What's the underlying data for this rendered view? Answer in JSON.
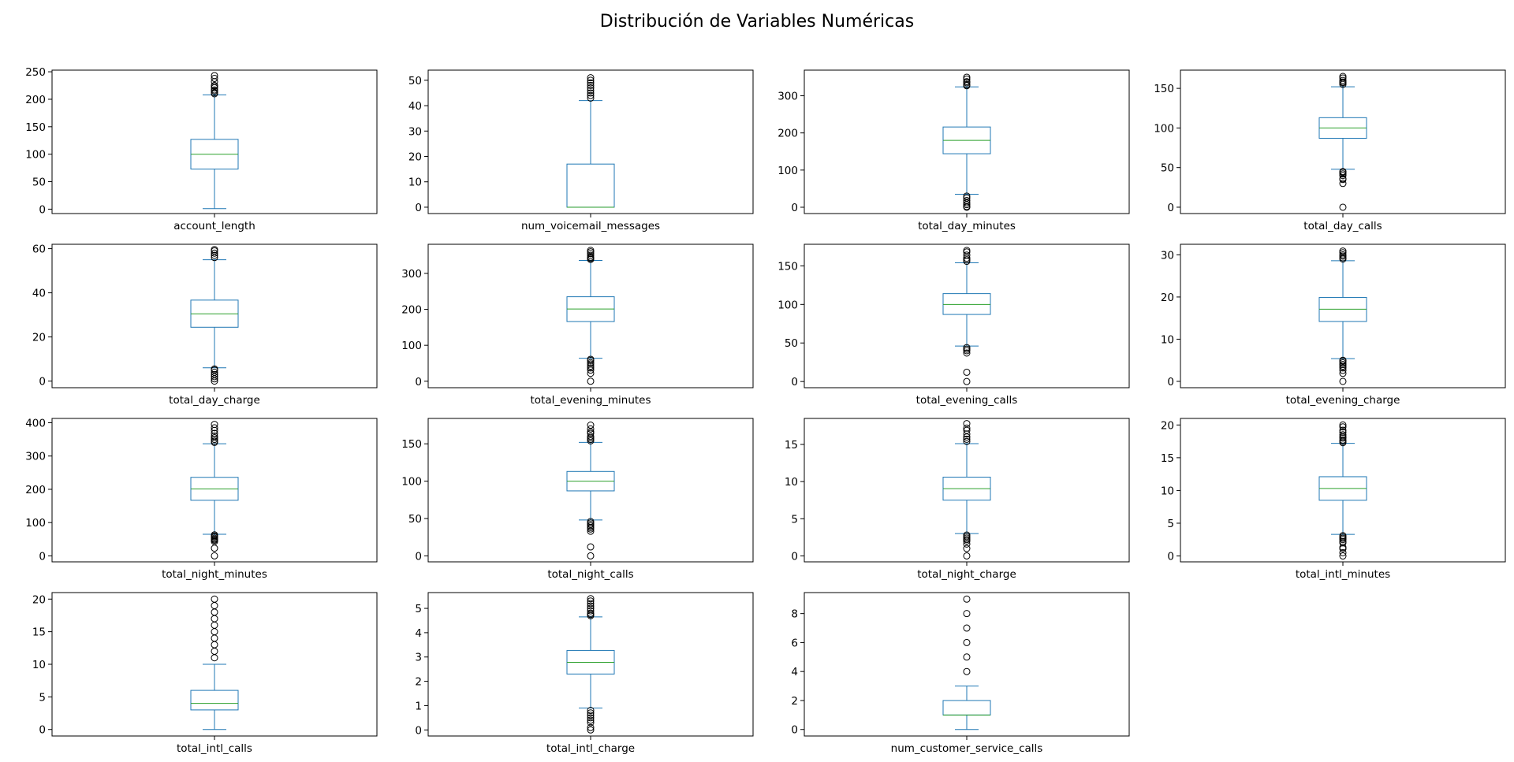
{
  "title": "Distribución de Variables Numéricas",
  "colors": {
    "box": "#1f77b4",
    "median": "#2ca02c",
    "flier": "#000000",
    "axes": "#000000"
  },
  "chart_data": [
    {
      "type": "box",
      "label": "account_length",
      "ylim": [
        -8,
        253
      ],
      "yticks": [
        0,
        50,
        100,
        150,
        200,
        250
      ],
      "whislo": 1,
      "q1": 73,
      "med": 100,
      "q3": 127,
      "whishi": 208,
      "fliers": [
        210,
        212,
        215,
        217,
        221,
        224,
        225,
        232,
        238,
        243
      ]
    },
    {
      "type": "box",
      "label": "num_voicemail_messages",
      "ylim": [
        -2.5,
        54
      ],
      "yticks": [
        0,
        10,
        20,
        30,
        40,
        50
      ],
      "whislo": 0,
      "q1": 0,
      "med": 0,
      "q3": 17,
      "whishi": 42,
      "fliers": [
        43,
        44,
        45,
        46,
        47,
        48,
        49,
        50,
        51
      ]
    },
    {
      "type": "box",
      "label": "total_day_minutes",
      "ylim": [
        -17,
        369
      ],
      "yticks": [
        0,
        100,
        200,
        300
      ],
      "whislo": 35,
      "q1": 144,
      "med": 180,
      "q3": 216,
      "whishi": 324,
      "fliers": [
        0,
        2,
        7,
        12,
        18,
        25,
        30,
        327,
        330,
        335,
        338,
        345,
        350
      ]
    },
    {
      "type": "box",
      "label": "total_day_calls",
      "ylim": [
        -8,
        173
      ],
      "yticks": [
        0,
        50,
        100,
        150
      ],
      "whislo": 48,
      "q1": 87,
      "med": 100,
      "q3": 113,
      "whishi": 152,
      "fliers": [
        0,
        30,
        35,
        36,
        40,
        42,
        44,
        45,
        155,
        157,
        158,
        160,
        163,
        165
      ]
    },
    {
      "type": "box",
      "label": "total_day_charge",
      "ylim": [
        -3,
        62
      ],
      "yticks": [
        0,
        20,
        40,
        60
      ],
      "whislo": 6,
      "q1": 24.4,
      "med": 30.5,
      "q3": 36.7,
      "whishi": 55,
      "fliers": [
        0,
        1,
        2,
        3,
        4,
        5,
        5.5,
        56,
        57,
        58,
        59,
        59.6
      ]
    },
    {
      "type": "box",
      "label": "total_evening_minutes",
      "ylim": [
        -18,
        381
      ],
      "yticks": [
        0,
        100,
        200,
        300
      ],
      "whislo": 64,
      "q1": 166,
      "med": 201,
      "q3": 235,
      "whishi": 336,
      "fliers": [
        0,
        22,
        31,
        37,
        42,
        48,
        52,
        58,
        61,
        339,
        342,
        345,
        350,
        355,
        360,
        364
      ]
    },
    {
      "type": "box",
      "label": "total_evening_calls",
      "ylim": [
        -8,
        178
      ],
      "yticks": [
        0,
        50,
        100,
        150
      ],
      "whislo": 46,
      "q1": 87,
      "med": 100,
      "q3": 114,
      "whishi": 154,
      "fliers": [
        0,
        12,
        37,
        40,
        42,
        44,
        156,
        158,
        160,
        164,
        168,
        170
      ]
    },
    {
      "type": "box",
      "label": "total_evening_charge",
      "ylim": [
        -1.5,
        32.5
      ],
      "yticks": [
        0,
        10,
        20,
        30
      ],
      "whislo": 5.4,
      "q1": 14.2,
      "med": 17.1,
      "q3": 19.9,
      "whishi": 28.6,
      "fliers": [
        0,
        1.9,
        2.6,
        3.2,
        3.6,
        4,
        4.4,
        4.8,
        5,
        29,
        29.3,
        29.7,
        30,
        30.5,
        30.9
      ]
    },
    {
      "type": "box",
      "label": "total_night_minutes",
      "ylim": [
        -18,
        413
      ],
      "yticks": [
        0,
        100,
        200,
        300,
        400
      ],
      "whislo": 65,
      "q1": 167,
      "med": 201,
      "q3": 236,
      "whishi": 337,
      "fliers": [
        0,
        23,
        43,
        47,
        50,
        53,
        57,
        60,
        63,
        341,
        345,
        350,
        355,
        360,
        368,
        377,
        385,
        395
      ]
    },
    {
      "type": "box",
      "label": "total_night_calls",
      "ylim": [
        -8,
        184
      ],
      "yticks": [
        0,
        50,
        100,
        150
      ],
      "whislo": 48,
      "q1": 87,
      "med": 100,
      "q3": 113,
      "whishi": 152,
      "fliers": [
        0,
        12,
        33,
        36,
        38,
        40,
        42,
        44,
        46,
        154,
        156,
        158,
        160,
        164,
        166,
        170,
        175
      ]
    },
    {
      "type": "box",
      "label": "total_night_charge",
      "ylim": [
        -0.8,
        18.5
      ],
      "yticks": [
        0,
        5,
        10,
        15
      ],
      "whislo": 3,
      "q1": 7.5,
      "med": 9.05,
      "q3": 10.6,
      "whishi": 15.1,
      "fliers": [
        0,
        1,
        1.6,
        2,
        2.2,
        2.4,
        2.6,
        2.8,
        15.4,
        15.7,
        16,
        16.4,
        16.9,
        17.2,
        17.8
      ]
    },
    {
      "type": "box",
      "label": "total_intl_minutes",
      "ylim": [
        -0.9,
        21
      ],
      "yticks": [
        0,
        5,
        10,
        15,
        20
      ],
      "whislo": 3.3,
      "q1": 8.5,
      "med": 10.3,
      "q3": 12.1,
      "whishi": 17.2,
      "fliers": [
        0,
        0.5,
        1.1,
        1.3,
        2,
        2.2,
        2.5,
        2.7,
        2.9,
        3.1,
        17.3,
        17.5,
        17.7,
        18,
        18.2,
        18.5,
        18.9,
        19.2,
        19.7,
        20
      ]
    },
    {
      "type": "box",
      "label": "total_intl_calls",
      "ylim": [
        -1,
        21
      ],
      "yticks": [
        0,
        5,
        10,
        15,
        20
      ],
      "whislo": 0,
      "q1": 3,
      "med": 4,
      "q3": 6,
      "whishi": 10,
      "fliers": [
        11,
        12,
        13,
        14,
        15,
        16,
        17,
        18,
        19,
        20
      ]
    },
    {
      "type": "box",
      "label": "total_intl_charge",
      "ylim": [
        -0.25,
        5.65
      ],
      "yticks": [
        0,
        1,
        2,
        3,
        4,
        5
      ],
      "whislo": 0.9,
      "q1": 2.3,
      "med": 2.78,
      "q3": 3.27,
      "whishi": 4.65,
      "fliers": [
        0,
        0.1,
        0.3,
        0.4,
        0.5,
        0.6,
        0.7,
        0.8,
        4.7,
        4.75,
        4.8,
        4.9,
        5,
        5.1,
        5.2,
        5.3,
        5.4
      ]
    },
    {
      "type": "box",
      "label": "num_customer_service_calls",
      "ylim": [
        -0.45,
        9.45
      ],
      "yticks": [
        0,
        2,
        4,
        6,
        8
      ],
      "whislo": 0,
      "q1": 1,
      "med": 1,
      "q3": 2,
      "whishi": 3,
      "fliers": [
        4,
        5,
        6,
        7,
        8,
        9
      ]
    }
  ]
}
